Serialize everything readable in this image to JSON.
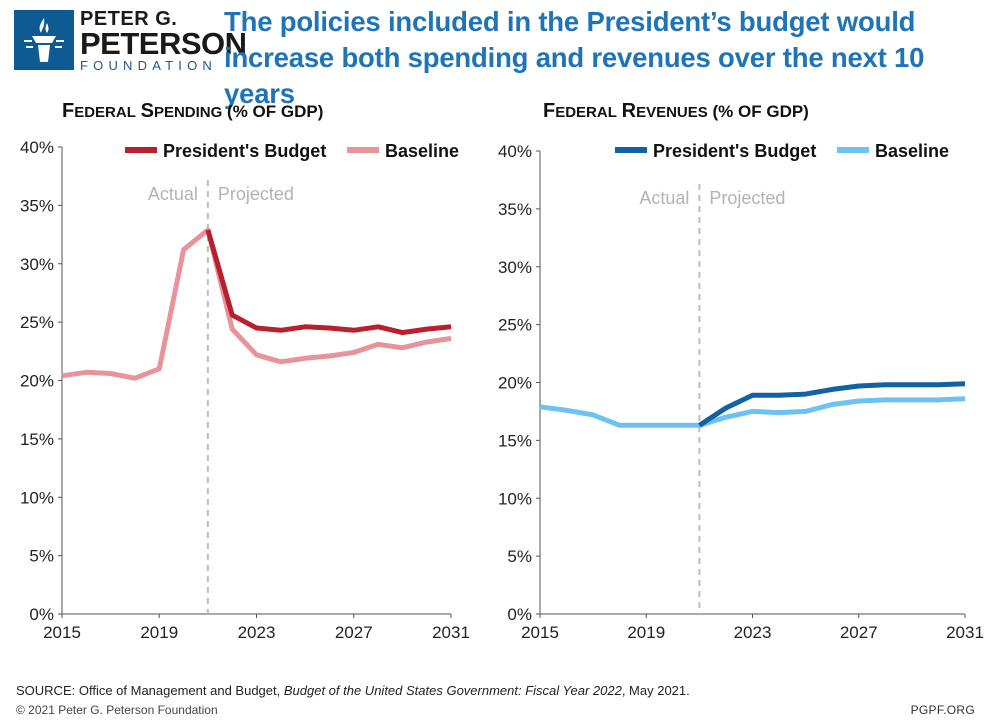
{
  "header": {
    "logo_line1": "PETER G.",
    "logo_line2": "PETERSON",
    "logo_line3": "FOUNDATION",
    "headline": "The policies included in the President’s budget would increase both spending and revenues over the next 10 years"
  },
  "colors": {
    "headline": "#1f73b7",
    "spending_budget": "#b8202e",
    "spending_baseline": "#e8939a",
    "revenue_budget": "#1161a4",
    "revenue_baseline": "#6ec2f3",
    "divider": "#bdbdbd",
    "annotation": "#b3b3b3"
  },
  "chart_data": [
    {
      "type": "line",
      "title": "Federal Spending (% of GDP)",
      "title_main": "F",
      "title_rest": "EDERAL",
      "title_main2": "S",
      "title_rest2": "PENDING",
      "title_small": "(% OF GDP)",
      "xlabel": "",
      "ylabel": "",
      "xlim": [
        2015,
        2031
      ],
      "ylim": [
        0,
        40
      ],
      "x_ticks": [
        "2015",
        "2019",
        "2023",
        "2027",
        "2031"
      ],
      "y_ticks": [
        "0%",
        "5%",
        "10%",
        "15%",
        "20%",
        "25%",
        "30%",
        "35%",
        "40%"
      ],
      "divider_year": 2021,
      "annotation_left": "Actual",
      "annotation_right": "Projected",
      "legend_position": "top-right",
      "series": [
        {
          "name": "President's Budget",
          "x": [
            2021,
            2022,
            2023,
            2024,
            2025,
            2026,
            2027,
            2028,
            2029,
            2030,
            2031
          ],
          "values": [
            32.9,
            25.6,
            24.5,
            24.3,
            24.6,
            24.5,
            24.3,
            24.6,
            24.1,
            24.4,
            24.6
          ]
        },
        {
          "name": "Baseline",
          "x": [
            2015,
            2016,
            2017,
            2018,
            2019,
            2020,
            2021,
            2022,
            2023,
            2024,
            2025,
            2026,
            2027,
            2028,
            2029,
            2030,
            2031
          ],
          "values": [
            20.4,
            20.7,
            20.6,
            20.2,
            21.0,
            31.2,
            32.9,
            24.4,
            22.2,
            21.6,
            21.9,
            22.1,
            22.4,
            23.1,
            22.8,
            23.3,
            23.6
          ]
        }
      ]
    },
    {
      "type": "line",
      "title": "Federal Revenues (% of GDP)",
      "title_main": "F",
      "title_rest": "EDERAL",
      "title_main2": "R",
      "title_rest2": "EVENUES",
      "title_small": "(% OF GDP)",
      "xlabel": "",
      "ylabel": "",
      "xlim": [
        2015,
        2031
      ],
      "ylim": [
        0,
        40
      ],
      "x_ticks": [
        "2015",
        "2019",
        "2023",
        "2027",
        "2031"
      ],
      "y_ticks": [
        "0%",
        "5%",
        "10%",
        "15%",
        "20%",
        "25%",
        "30%",
        "35%",
        "40%"
      ],
      "divider_year": 2021,
      "annotation_left": "Actual",
      "annotation_right": "Projected",
      "legend_position": "top-right",
      "series": [
        {
          "name": "President's Budget",
          "x": [
            2021,
            2022,
            2023,
            2024,
            2025,
            2026,
            2027,
            2028,
            2029,
            2030,
            2031
          ],
          "values": [
            16.3,
            17.8,
            18.9,
            18.9,
            19.0,
            19.4,
            19.7,
            19.8,
            19.8,
            19.8,
            19.9
          ]
        },
        {
          "name": "Baseline",
          "x": [
            2015,
            2016,
            2017,
            2018,
            2019,
            2020,
            2021,
            2022,
            2023,
            2024,
            2025,
            2026,
            2027,
            2028,
            2029,
            2030,
            2031
          ],
          "values": [
            17.9,
            17.6,
            17.2,
            16.3,
            16.3,
            16.3,
            16.3,
            17.0,
            17.5,
            17.4,
            17.5,
            18.1,
            18.4,
            18.5,
            18.5,
            18.5,
            18.6
          ]
        }
      ]
    }
  ],
  "footer": {
    "source_prefix": "SOURCE: Office of Management and Budget, ",
    "source_italic": "Budget of the United States Government: Fiscal Year 2022",
    "source_suffix": ", May 2021.",
    "copyright": "© 2021 Peter G. Peterson Foundation",
    "url": "PGPF.ORG"
  }
}
